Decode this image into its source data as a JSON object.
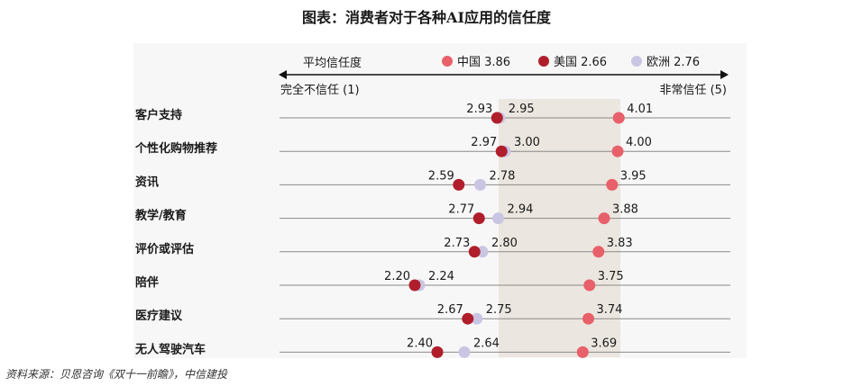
{
  "title": "图表：消费者对于各种AI应用的信任度",
  "source": "资料来源：贝恩咨询《双十一前瞻》，中信建投",
  "chart_data": {
    "type": "dot-plot",
    "title": "图表：消费者对于各种AI应用的信任度",
    "axis_caption": "平均信任度",
    "left_label": "完全不信任 (1)",
    "right_label": "非常信任 (5)",
    "xlim": [
      1,
      5
    ],
    "categories": [
      "客户支持",
      "个性化购物推荐",
      "资讯",
      "教学/教育",
      "评价或评估",
      "陪伴",
      "医疗建议",
      "无人驾驶汽车"
    ],
    "series": [
      {
        "name": "中国",
        "average": "3.86",
        "color": "#e8606a",
        "values": [
          4.01,
          4.0,
          3.95,
          3.88,
          3.83,
          3.75,
          3.74,
          3.69
        ]
      },
      {
        "name": "美国",
        "average": "2.66",
        "color": "#b01e2b",
        "values": [
          2.93,
          2.97,
          2.59,
          2.77,
          2.73,
          2.2,
          2.67,
          2.4
        ]
      },
      {
        "name": "欧洲",
        "average": "2.76",
        "color": "#c9c6e3",
        "values": [
          2.95,
          3.0,
          2.78,
          2.94,
          2.8,
          2.24,
          2.75,
          2.64
        ]
      }
    ],
    "highlight_band_color": "#ebe6df",
    "legend_position": "top-right",
    "grid": false
  }
}
